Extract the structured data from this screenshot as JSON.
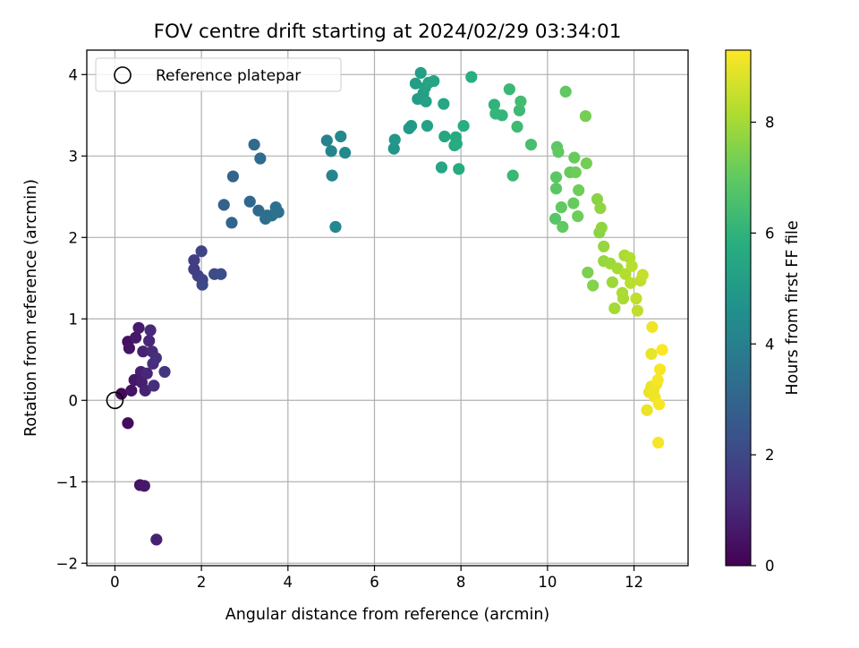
{
  "chart_data": {
    "type": "scatter",
    "title": "FOV centre drift starting at 2024/02/29 03:34:01",
    "xlabel": "Angular distance from reference (arcmin)",
    "ylabel": "Rotation from reference (arcmin)",
    "xlim": [
      -0.65,
      13.25
    ],
    "ylim": [
      -2.03,
      4.3
    ],
    "xticks": [
      0,
      2,
      4,
      6,
      8,
      10,
      12
    ],
    "yticks": [
      -2,
      -1,
      0,
      1,
      2,
      3,
      4
    ],
    "grid": true,
    "legend": {
      "position": "top-left",
      "entries": [
        "Reference platepar"
      ]
    },
    "reference_point": {
      "x": 0,
      "y": 0
    },
    "colorbar": {
      "label": "Hours from first FF file",
      "colormap": "viridis",
      "range": [
        0,
        9.3
      ],
      "ticks": [
        0,
        2,
        4,
        6,
        8
      ]
    },
    "series": [
      {
        "values": [
          [
            0.15,
            0.08,
            0.2
          ],
          [
            0.3,
            0.72,
            0.4
          ],
          [
            0.33,
            0.64,
            0.5
          ],
          [
            0.3,
            -0.28,
            0.3
          ],
          [
            0.38,
            0.12,
            0.5
          ],
          [
            0.45,
            0.25,
            0.6
          ],
          [
            0.48,
            0.77,
            0.6
          ],
          [
            0.55,
            0.89,
            0.7
          ],
          [
            0.6,
            0.35,
            0.8
          ],
          [
            0.62,
            0.22,
            0.8
          ],
          [
            0.65,
            0.6,
            0.9
          ],
          [
            0.7,
            0.12,
            0.9
          ],
          [
            0.74,
            0.33,
            1.0
          ],
          [
            0.79,
            0.73,
            1.0
          ],
          [
            0.82,
            0.86,
            1.1
          ],
          [
            0.86,
            0.6,
            1.1
          ],
          [
            0.88,
            0.45,
            1.2
          ],
          [
            0.9,
            0.18,
            1.2
          ],
          [
            0.95,
            0.52,
            1.3
          ],
          [
            1.15,
            0.35,
            1.4
          ],
          [
            0.58,
            -1.04,
            0.5
          ],
          [
            0.68,
            -1.05,
            0.6
          ],
          [
            0.96,
            -1.71,
            0.9
          ],
          [
            1.83,
            1.72,
            1.7
          ],
          [
            1.83,
            1.61,
            1.7
          ],
          [
            1.92,
            1.53,
            1.8
          ],
          [
            2.02,
            1.48,
            1.9
          ],
          [
            2.0,
            1.83,
            1.9
          ],
          [
            2.02,
            1.42,
            2.0
          ],
          [
            2.3,
            1.55,
            2.1
          ],
          [
            2.45,
            1.55,
            2.2
          ],
          [
            2.52,
            2.4,
            2.9
          ],
          [
            2.7,
            2.18,
            3.0
          ],
          [
            2.73,
            2.75,
            3.0
          ],
          [
            3.12,
            2.44,
            3.1
          ],
          [
            3.22,
            3.14,
            3.2
          ],
          [
            3.32,
            2.33,
            3.2
          ],
          [
            3.36,
            2.97,
            3.3
          ],
          [
            3.48,
            2.23,
            3.3
          ],
          [
            3.52,
            2.27,
            3.4
          ],
          [
            3.63,
            2.27,
            3.4
          ],
          [
            3.72,
            2.37,
            3.5
          ],
          [
            3.78,
            2.31,
            3.5
          ],
          [
            4.9,
            3.19,
            4.1
          ],
          [
            5.0,
            3.06,
            4.2
          ],
          [
            5.02,
            2.76,
            4.2
          ],
          [
            5.1,
            2.13,
            4.3
          ],
          [
            5.22,
            3.24,
            4.3
          ],
          [
            5.32,
            3.04,
            4.4
          ],
          [
            6.45,
            3.09,
            4.8
          ],
          [
            6.47,
            3.2,
            4.9
          ],
          [
            6.8,
            3.34,
            5.0
          ],
          [
            6.85,
            3.37,
            5.0
          ],
          [
            6.95,
            3.89,
            5.1
          ],
          [
            7.0,
            3.7,
            5.1
          ],
          [
            7.07,
            4.02,
            5.2
          ],
          [
            7.13,
            3.77,
            5.2
          ],
          [
            7.17,
            3.84,
            5.3
          ],
          [
            7.19,
            3.67,
            5.3
          ],
          [
            7.22,
            3.37,
            5.3
          ],
          [
            7.25,
            3.9,
            5.4
          ],
          [
            7.37,
            3.92,
            5.4
          ],
          [
            7.55,
            2.86,
            5.5
          ],
          [
            7.6,
            3.64,
            5.5
          ],
          [
            7.62,
            3.24,
            5.5
          ],
          [
            7.85,
            3.13,
            5.6
          ],
          [
            7.88,
            3.23,
            5.6
          ],
          [
            7.9,
            3.15,
            5.7
          ],
          [
            7.95,
            2.84,
            5.7
          ],
          [
            8.06,
            3.37,
            5.8
          ],
          [
            8.24,
            3.97,
            5.8
          ],
          [
            8.77,
            3.63,
            6.0
          ],
          [
            8.8,
            3.52,
            6.1
          ],
          [
            8.95,
            3.5,
            6.1
          ],
          [
            9.12,
            3.82,
            6.2
          ],
          [
            9.2,
            2.76,
            6.2
          ],
          [
            9.3,
            3.36,
            6.3
          ],
          [
            9.35,
            3.56,
            6.3
          ],
          [
            9.38,
            3.67,
            6.4
          ],
          [
            9.62,
            3.14,
            6.5
          ],
          [
            10.18,
            2.23,
            6.8
          ],
          [
            10.2,
            2.6,
            6.9
          ],
          [
            10.2,
            2.74,
            6.9
          ],
          [
            10.22,
            3.11,
            6.9
          ],
          [
            10.25,
            3.05,
            7.0
          ],
          [
            10.32,
            2.37,
            7.0
          ],
          [
            10.35,
            2.13,
            7.0
          ],
          [
            10.42,
            3.79,
            7.0
          ],
          [
            10.52,
            2.8,
            7.1
          ],
          [
            10.6,
            2.42,
            7.1
          ],
          [
            10.62,
            2.98,
            7.1
          ],
          [
            10.65,
            2.8,
            7.2
          ],
          [
            10.7,
            2.26,
            7.2
          ],
          [
            10.72,
            2.58,
            7.2
          ],
          [
            10.88,
            3.49,
            7.3
          ],
          [
            10.9,
            2.91,
            7.3
          ],
          [
            10.93,
            1.57,
            7.4
          ],
          [
            11.05,
            1.41,
            7.5
          ],
          [
            11.15,
            2.47,
            7.6
          ],
          [
            11.2,
            2.06,
            7.6
          ],
          [
            11.22,
            2.36,
            7.7
          ],
          [
            11.25,
            2.12,
            7.7
          ],
          [
            11.3,
            1.89,
            7.8
          ],
          [
            11.3,
            1.71,
            7.8
          ],
          [
            11.45,
            1.68,
            7.9
          ],
          [
            11.5,
            1.45,
            7.9
          ],
          [
            11.55,
            1.13,
            8.0
          ],
          [
            11.62,
            1.62,
            8.0
          ],
          [
            11.73,
            1.32,
            8.1
          ],
          [
            11.75,
            1.25,
            8.1
          ],
          [
            11.78,
            1.78,
            8.1
          ],
          [
            11.8,
            1.55,
            8.2
          ],
          [
            11.9,
            1.75,
            8.2
          ],
          [
            11.92,
            1.44,
            8.3
          ],
          [
            11.95,
            1.65,
            8.3
          ],
          [
            12.05,
            1.25,
            8.4
          ],
          [
            12.08,
            1.1,
            8.4
          ],
          [
            12.15,
            1.47,
            8.4
          ],
          [
            12.2,
            1.54,
            8.5
          ],
          [
            12.3,
            -0.12,
            9.0
          ],
          [
            12.35,
            0.1,
            9.0
          ],
          [
            12.4,
            0.17,
            9.0
          ],
          [
            12.4,
            0.57,
            9.0
          ],
          [
            12.42,
            0.9,
            9.1
          ],
          [
            12.45,
            0.12,
            9.1
          ],
          [
            12.48,
            0.04,
            9.1
          ],
          [
            12.52,
            0.2,
            9.1
          ],
          [
            12.55,
            0.25,
            9.2
          ],
          [
            12.56,
            -0.52,
            9.2
          ],
          [
            12.58,
            -0.05,
            9.2
          ],
          [
            12.6,
            0.38,
            9.2
          ],
          [
            12.65,
            0.62,
            9.3
          ]
        ]
      }
    ]
  }
}
